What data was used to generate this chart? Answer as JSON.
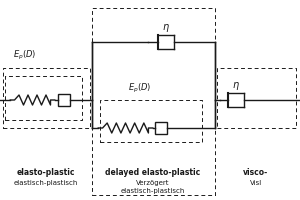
{
  "bg_color": "#ffffff",
  "line_color": "#1a1a1a",
  "figsize": [
    3.0,
    2.0
  ],
  "dpi": 100,
  "labels": {
    "s1_bold": "elasto-plastic",
    "s1_normal": "elastisch-plastisch",
    "s2_bold": "delayed elasto-plastic",
    "s2_normal1": "Verzögert",
    "s2_normal2": "elastisch-plastisch",
    "s3_bold": "visco-",
    "s3_normal": "Visl",
    "ep": "E_p(D)",
    "eta": "η"
  }
}
